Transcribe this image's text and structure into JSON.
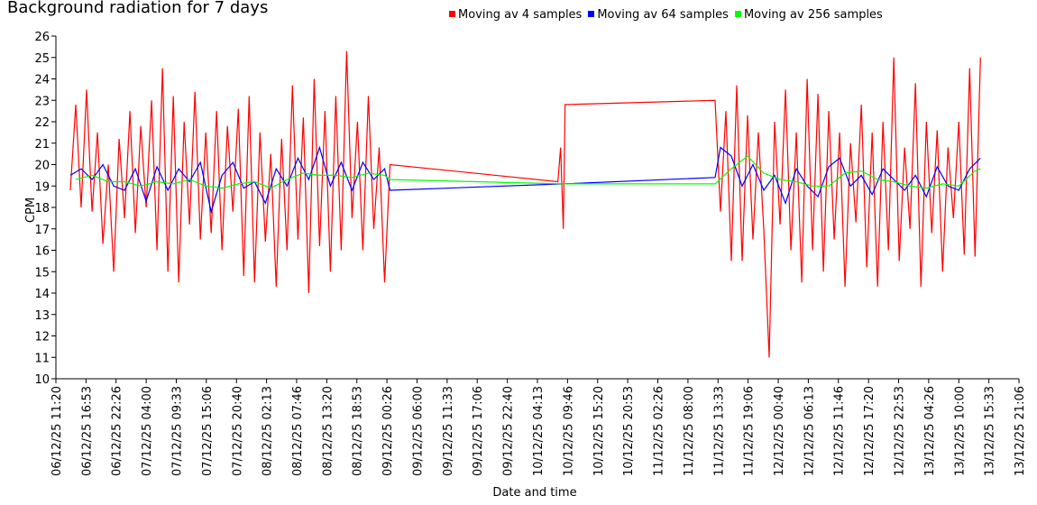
{
  "chart_data": {
    "type": "line",
    "title": "Background radiation for 7 days",
    "xlabel": "Date and time",
    "ylabel": "CPM",
    "ylim": [
      10,
      26
    ],
    "yticks": [
      10,
      11,
      12,
      13,
      14,
      15,
      16,
      17,
      18,
      19,
      20,
      21,
      22,
      23,
      24,
      25,
      26
    ],
    "xticks": [
      "06/12/25 11:20",
      "06/12/25 16:53",
      "06/12/25 22:26",
      "07/12/25 04:00",
      "07/12/25 09:33",
      "07/12/25 15:06",
      "07/12/25 20:40",
      "08/12/25 02:13",
      "08/12/25 07:46",
      "08/12/25 13:20",
      "08/12/25 18:53",
      "09/12/25 00:26",
      "09/12/25 06:00",
      "09/12/25 11:33",
      "09/12/25 17:06",
      "09/12/25 22:40",
      "10/12/25 04:13",
      "10/12/25 09:46",
      "10/12/25 15:20",
      "10/12/25 20:53",
      "11/12/25 02:26",
      "11/12/25 08:00",
      "11/12/25 13:33",
      "11/12/25 19:06",
      "12/12/25 00:40",
      "12/12/25 06:13",
      "12/12/25 11:46",
      "12/12/25 17:20",
      "12/12/25 22:53",
      "13/12/25 04:26",
      "13/12/25 10:00",
      "13/12/25 15:33",
      "13/12/25 21:06"
    ],
    "legend_position": "top",
    "grid": false,
    "series": [
      {
        "name": "Moving av 4 samples",
        "color": "#ff0000",
        "x": [
          "06/12/25 14:00",
          "06/12/25 15:00",
          "06/12/25 16:00",
          "06/12/25 17:00",
          "06/12/25 18:00",
          "06/12/25 19:00",
          "06/12/25 20:00",
          "06/12/25 21:00",
          "06/12/25 22:00",
          "06/12/25 23:00",
          "07/12/25 00:00",
          "07/12/25 01:00",
          "07/12/25 02:00",
          "07/12/25 03:00",
          "07/12/25 04:00",
          "07/12/25 05:00",
          "07/12/25 06:00",
          "07/12/25 07:00",
          "07/12/25 08:00",
          "07/12/25 09:00",
          "07/12/25 10:00",
          "07/12/25 11:00",
          "07/12/25 12:00",
          "07/12/25 13:00",
          "07/12/25 14:00",
          "07/12/25 15:00",
          "07/12/25 16:00",
          "07/12/25 17:00",
          "07/12/25 18:00",
          "07/12/25 19:00",
          "07/12/25 20:00",
          "07/12/25 21:00",
          "07/12/25 22:00",
          "07/12/25 23:00",
          "08/12/25 00:00",
          "08/12/25 01:00",
          "08/12/25 02:00",
          "08/12/25 03:00",
          "08/12/25 04:00",
          "08/12/25 05:00",
          "08/12/25 06:00",
          "08/12/25 07:00",
          "08/12/25 08:00",
          "08/12/25 09:00",
          "08/12/25 10:00",
          "08/12/25 11:00",
          "08/12/25 12:00",
          "08/12/25 13:00",
          "08/12/25 14:00",
          "08/12/25 15:00",
          "08/12/25 16:00",
          "08/12/25 17:00",
          "08/12/25 18:00",
          "08/12/25 19:00",
          "08/12/25 20:00",
          "08/12/25 21:00",
          "08/12/25 22:00",
          "08/12/25 23:00",
          "09/12/25 00:00",
          "09/12/25 01:00",
          "10/12/25 08:00",
          "10/12/25 08:30",
          "10/12/25 09:00",
          "10/12/25 09:20",
          "11/12/25 13:00",
          "11/12/25 14:00",
          "11/12/25 15:00",
          "11/12/25 16:00",
          "11/12/25 17:00",
          "11/12/25 18:00",
          "11/12/25 19:00",
          "11/12/25 20:00",
          "11/12/25 21:00",
          "11/12/25 22:00",
          "11/12/25 23:00",
          "12/12/25 00:00",
          "12/12/25 01:00",
          "12/12/25 02:00",
          "12/12/25 03:00",
          "12/12/25 04:00",
          "12/12/25 05:00",
          "12/12/25 06:00",
          "12/12/25 07:00",
          "12/12/25 08:00",
          "12/12/25 09:00",
          "12/12/25 10:00",
          "12/12/25 11:00",
          "12/12/25 12:00",
          "12/12/25 13:00",
          "12/12/25 14:00",
          "12/12/25 15:00",
          "12/12/25 16:00",
          "12/12/25 17:00",
          "12/12/25 18:00",
          "12/12/25 19:00",
          "12/12/25 20:00",
          "12/12/25 21:00",
          "12/12/25 22:00",
          "12/12/25 23:00",
          "13/12/25 00:00",
          "13/12/25 01:00",
          "13/12/25 02:00",
          "13/12/25 03:00",
          "13/12/25 04:00",
          "13/12/25 05:00",
          "13/12/25 06:00",
          "13/12/25 07:00",
          "13/12/25 08:00",
          "13/12/25 09:00",
          "13/12/25 10:00",
          "13/12/25 11:00",
          "13/12/25 12:00",
          "13/12/25 13:00",
          "13/12/25 14:00"
        ],
        "values": [
          18.8,
          22.8,
          18.0,
          23.5,
          17.8,
          21.5,
          16.3,
          20.0,
          15.0,
          21.2,
          17.5,
          22.5,
          16.8,
          21.8,
          18.0,
          23.0,
          16.0,
          24.5,
          15.0,
          23.2,
          14.5,
          22.0,
          17.2,
          23.4,
          16.5,
          21.5,
          16.8,
          22.5,
          16.0,
          21.8,
          17.8,
          22.6,
          14.8,
          23.2,
          14.5,
          21.5,
          16.4,
          20.5,
          14.3,
          21.2,
          16.0,
          23.7,
          16.5,
          22.2,
          14.0,
          24.0,
          16.2,
          22.5,
          15.0,
          23.2,
          16.0,
          25.3,
          17.5,
          22.0,
          16.0,
          23.2,
          17.0,
          20.8,
          14.5,
          20.0,
          19.2,
          20.8,
          17.0,
          22.8,
          23.0,
          17.8,
          22.5,
          15.5,
          23.7,
          15.5,
          22.3,
          16.5,
          21.5,
          17.0,
          11.0,
          22.0,
          17.2,
          23.5,
          16.0,
          21.5,
          14.5,
          24.0,
          16.0,
          23.3,
          15.0,
          22.5,
          16.5,
          21.5,
          14.3,
          21.0,
          17.3,
          22.8,
          15.2,
          21.5,
          14.3,
          22.0,
          16.0,
          25.0,
          15.5,
          20.8,
          17.0,
          23.8,
          14.3,
          22.0,
          16.8,
          21.6,
          15.0,
          20.8,
          17.5,
          22.0,
          15.8,
          24.5,
          15.7,
          25.0
        ]
      },
      {
        "name": "Moving av 64 samples",
        "color": "#0000ff",
        "x": [
          "06/12/25 14:00",
          "06/12/25 16:00",
          "06/12/25 18:00",
          "06/12/25 20:00",
          "06/12/25 22:00",
          "07/12/25 00:00",
          "07/12/25 02:00",
          "07/12/25 04:00",
          "07/12/25 06:00",
          "07/12/25 08:00",
          "07/12/25 10:00",
          "07/12/25 12:00",
          "07/12/25 14:00",
          "07/12/25 16:00",
          "07/12/25 18:00",
          "07/12/25 20:00",
          "07/12/25 22:00",
          "08/12/25 00:00",
          "08/12/25 02:00",
          "08/12/25 04:00",
          "08/12/25 06:00",
          "08/12/25 08:00",
          "08/12/25 10:00",
          "08/12/25 12:00",
          "08/12/25 14:00",
          "08/12/25 16:00",
          "08/12/25 18:00",
          "08/12/25 20:00",
          "08/12/25 22:00",
          "09/12/25 00:00",
          "09/12/25 01:00",
          "10/12/25 09:00",
          "11/12/25 13:00",
          "11/12/25 14:00",
          "11/12/25 16:00",
          "11/12/25 18:00",
          "11/12/25 20:00",
          "11/12/25 22:00",
          "12/12/25 00:00",
          "12/12/25 02:00",
          "12/12/25 04:00",
          "12/12/25 06:00",
          "12/12/25 08:00",
          "12/12/25 10:00",
          "12/12/25 12:00",
          "12/12/25 14:00",
          "12/12/25 16:00",
          "12/12/25 18:00",
          "12/12/25 20:00",
          "12/12/25 22:00",
          "13/12/25 00:00",
          "13/12/25 02:00",
          "13/12/25 04:00",
          "13/12/25 06:00",
          "13/12/25 08:00",
          "13/12/25 10:00",
          "13/12/25 12:00",
          "13/12/25 14:00"
        ],
        "values": [
          19.5,
          19.8,
          19.3,
          20.0,
          19.0,
          18.8,
          19.8,
          18.3,
          19.9,
          18.8,
          19.8,
          19.2,
          20.1,
          17.8,
          19.5,
          20.1,
          18.9,
          19.2,
          18.2,
          19.8,
          19.0,
          20.3,
          19.3,
          20.8,
          19.0,
          20.1,
          18.8,
          20.1,
          19.3,
          19.8,
          18.8,
          19.1,
          19.4,
          20.8,
          20.4,
          19.0,
          20.0,
          18.8,
          19.5,
          18.2,
          19.8,
          19.0,
          18.5,
          19.9,
          20.3,
          19.0,
          19.5,
          18.6,
          19.8,
          19.3,
          18.8,
          19.5,
          18.5,
          19.9,
          19.0,
          18.8,
          19.8,
          20.3
        ]
      },
      {
        "name": "Moving av 256 samples",
        "color": "#00ff00",
        "x": [
          "06/12/25 15:00",
          "06/12/25 18:00",
          "06/12/25 21:00",
          "07/12/25 00:00",
          "07/12/25 03:00",
          "07/12/25 06:00",
          "07/12/25 09:00",
          "07/12/25 12:00",
          "07/12/25 15:00",
          "07/12/25 18:00",
          "07/12/25 21:00",
          "08/12/25 00:00",
          "08/12/25 03:00",
          "08/12/25 06:00",
          "08/12/25 09:00",
          "08/12/25 12:00",
          "08/12/25 15:00",
          "08/12/25 18:00",
          "08/12/25 21:00",
          "09/12/25 00:00",
          "09/12/25 01:00",
          "10/12/25 09:00",
          "11/12/25 13:00",
          "11/12/25 16:00",
          "11/12/25 19:00",
          "11/12/25 22:00",
          "12/12/25 01:00",
          "12/12/25 04:00",
          "12/12/25 07:00",
          "12/12/25 10:00",
          "12/12/25 13:00",
          "12/12/25 16:00",
          "12/12/25 19:00",
          "12/12/25 22:00",
          "13/12/25 01:00",
          "13/12/25 04:00",
          "13/12/25 07:00",
          "13/12/25 10:00",
          "13/12/25 13:00",
          "13/12/25 14:00"
        ],
        "values": [
          19.3,
          19.5,
          19.2,
          19.2,
          19.0,
          19.2,
          19.1,
          19.3,
          19.0,
          18.9,
          19.1,
          19.2,
          18.9,
          19.3,
          19.6,
          19.5,
          19.5,
          19.4,
          19.6,
          19.5,
          19.3,
          19.1,
          19.1,
          19.8,
          20.4,
          19.6,
          19.3,
          19.2,
          19.0,
          19.0,
          19.6,
          19.7,
          19.3,
          19.2,
          19.0,
          18.9,
          19.1,
          19.0,
          19.7,
          19.8
        ]
      }
    ]
  }
}
